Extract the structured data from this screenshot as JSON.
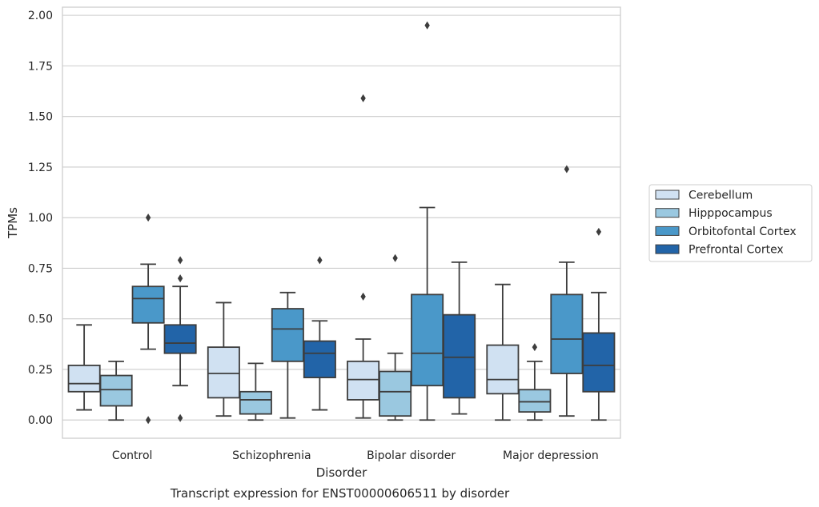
{
  "chart_data": {
    "type": "box",
    "caption": "Transcript expression for ENST00000606511 by disorder",
    "xlabel": "Disorder",
    "ylabel": "TPMs",
    "ylim": [
      -0.09,
      2.04
    ],
    "yticks": [
      0.0,
      0.25,
      0.5,
      0.75,
      1.0,
      1.25,
      1.5,
      1.75,
      2.0
    ],
    "ytick_labels": [
      "0.00",
      "0.25",
      "0.50",
      "0.75",
      "1.00",
      "1.25",
      "1.50",
      "1.75",
      "2.00"
    ],
    "grid": "horizontal",
    "legend_position": "right",
    "categories": [
      "Control",
      "Schizophrenia",
      "Bipolar disorder",
      "Major depression"
    ],
    "series": [
      {
        "name": "Cerebellum",
        "color": "#d0e1f2",
        "boxes": [
          {
            "whisker_low": 0.05,
            "q1": 0.14,
            "median": 0.18,
            "q3": 0.27,
            "whisker_high": 0.47,
            "outliers": []
          },
          {
            "whisker_low": 0.02,
            "q1": 0.11,
            "median": 0.23,
            "q3": 0.36,
            "whisker_high": 0.58,
            "outliers": []
          },
          {
            "whisker_low": 0.01,
            "q1": 0.1,
            "median": 0.2,
            "q3": 0.29,
            "whisker_high": 0.4,
            "outliers": [
              0.61,
              1.59
            ]
          },
          {
            "whisker_low": 0.0,
            "q1": 0.13,
            "median": 0.2,
            "q3": 0.37,
            "whisker_high": 0.67,
            "outliers": []
          }
        ]
      },
      {
        "name": "Hipppocampus",
        "color": "#9ac8e0",
        "boxes": [
          {
            "whisker_low": 0.0,
            "q1": 0.07,
            "median": 0.15,
            "q3": 0.22,
            "whisker_high": 0.29,
            "outliers": []
          },
          {
            "whisker_low": 0.0,
            "q1": 0.03,
            "median": 0.1,
            "q3": 0.14,
            "whisker_high": 0.28,
            "outliers": []
          },
          {
            "whisker_low": 0.0,
            "q1": 0.02,
            "median": 0.14,
            "q3": 0.24,
            "whisker_high": 0.33,
            "outliers": [
              0.8
            ]
          },
          {
            "whisker_low": 0.0,
            "q1": 0.04,
            "median": 0.09,
            "q3": 0.15,
            "whisker_high": 0.29,
            "outliers": [
              0.36
            ]
          }
        ]
      },
      {
        "name": "Orbitofontal Cortex",
        "color": "#4a98c9",
        "boxes": [
          {
            "whisker_low": 0.35,
            "q1": 0.48,
            "median": 0.6,
            "q3": 0.66,
            "whisker_high": 0.77,
            "outliers": [
              0.0,
              1.0
            ]
          },
          {
            "whisker_low": 0.01,
            "q1": 0.29,
            "median": 0.45,
            "q3": 0.55,
            "whisker_high": 0.63,
            "outliers": []
          },
          {
            "whisker_low": 0.0,
            "q1": 0.17,
            "median": 0.33,
            "q3": 0.62,
            "whisker_high": 1.05,
            "outliers": [
              1.95
            ]
          },
          {
            "whisker_low": 0.02,
            "q1": 0.23,
            "median": 0.4,
            "q3": 0.62,
            "whisker_high": 0.78,
            "outliers": [
              1.24
            ]
          }
        ]
      },
      {
        "name": "Prefrontal Cortex",
        "color": "#2264a8",
        "boxes": [
          {
            "whisker_low": 0.17,
            "q1": 0.33,
            "median": 0.38,
            "q3": 0.47,
            "whisker_high": 0.66,
            "outliers": [
              0.01,
              0.7,
              0.79
            ]
          },
          {
            "whisker_low": 0.05,
            "q1": 0.21,
            "median": 0.33,
            "q3": 0.39,
            "whisker_high": 0.49,
            "outliers": [
              0.79
            ]
          },
          {
            "whisker_low": 0.03,
            "q1": 0.11,
            "median": 0.31,
            "q3": 0.52,
            "whisker_high": 0.78,
            "outliers": []
          },
          {
            "whisker_low": 0.0,
            "q1": 0.14,
            "median": 0.27,
            "q3": 0.43,
            "whisker_high": 0.63,
            "outliers": [
              0.93
            ]
          }
        ]
      }
    ]
  }
}
